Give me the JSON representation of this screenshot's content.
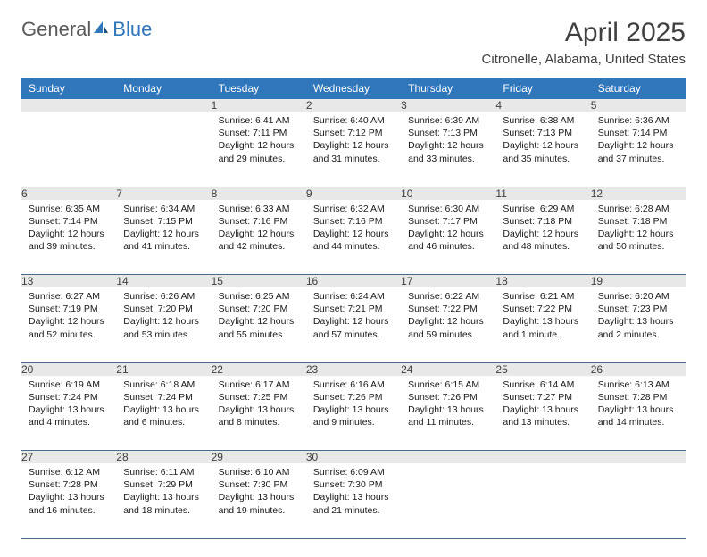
{
  "logo": {
    "general": "General",
    "blue": "Blue"
  },
  "title": "April 2025",
  "subtitle": "Citronelle, Alabama, United States",
  "headers": [
    "Sunday",
    "Monday",
    "Tuesday",
    "Wednesday",
    "Thursday",
    "Friday",
    "Saturday"
  ],
  "colors": {
    "header_bg": "#2f76bb",
    "header_fg": "#ffffff",
    "daynum_bg": "#e8e8e8",
    "border": "#4a6a8a",
    "text": "#1a1a1a",
    "title": "#404040"
  },
  "weeks": [
    [
      null,
      null,
      {
        "n": "1",
        "l1": "Sunrise: 6:41 AM",
        "l2": "Sunset: 7:11 PM",
        "l3": "Daylight: 12 hours",
        "l4": "and 29 minutes."
      },
      {
        "n": "2",
        "l1": "Sunrise: 6:40 AM",
        "l2": "Sunset: 7:12 PM",
        "l3": "Daylight: 12 hours",
        "l4": "and 31 minutes."
      },
      {
        "n": "3",
        "l1": "Sunrise: 6:39 AM",
        "l2": "Sunset: 7:13 PM",
        "l3": "Daylight: 12 hours",
        "l4": "and 33 minutes."
      },
      {
        "n": "4",
        "l1": "Sunrise: 6:38 AM",
        "l2": "Sunset: 7:13 PM",
        "l3": "Daylight: 12 hours",
        "l4": "and 35 minutes."
      },
      {
        "n": "5",
        "l1": "Sunrise: 6:36 AM",
        "l2": "Sunset: 7:14 PM",
        "l3": "Daylight: 12 hours",
        "l4": "and 37 minutes."
      }
    ],
    [
      {
        "n": "6",
        "l1": "Sunrise: 6:35 AM",
        "l2": "Sunset: 7:14 PM",
        "l3": "Daylight: 12 hours",
        "l4": "and 39 minutes."
      },
      {
        "n": "7",
        "l1": "Sunrise: 6:34 AM",
        "l2": "Sunset: 7:15 PM",
        "l3": "Daylight: 12 hours",
        "l4": "and 41 minutes."
      },
      {
        "n": "8",
        "l1": "Sunrise: 6:33 AM",
        "l2": "Sunset: 7:16 PM",
        "l3": "Daylight: 12 hours",
        "l4": "and 42 minutes."
      },
      {
        "n": "9",
        "l1": "Sunrise: 6:32 AM",
        "l2": "Sunset: 7:16 PM",
        "l3": "Daylight: 12 hours",
        "l4": "and 44 minutes."
      },
      {
        "n": "10",
        "l1": "Sunrise: 6:30 AM",
        "l2": "Sunset: 7:17 PM",
        "l3": "Daylight: 12 hours",
        "l4": "and 46 minutes."
      },
      {
        "n": "11",
        "l1": "Sunrise: 6:29 AM",
        "l2": "Sunset: 7:18 PM",
        "l3": "Daylight: 12 hours",
        "l4": "and 48 minutes."
      },
      {
        "n": "12",
        "l1": "Sunrise: 6:28 AM",
        "l2": "Sunset: 7:18 PM",
        "l3": "Daylight: 12 hours",
        "l4": "and 50 minutes."
      }
    ],
    [
      {
        "n": "13",
        "l1": "Sunrise: 6:27 AM",
        "l2": "Sunset: 7:19 PM",
        "l3": "Daylight: 12 hours",
        "l4": "and 52 minutes."
      },
      {
        "n": "14",
        "l1": "Sunrise: 6:26 AM",
        "l2": "Sunset: 7:20 PM",
        "l3": "Daylight: 12 hours",
        "l4": "and 53 minutes."
      },
      {
        "n": "15",
        "l1": "Sunrise: 6:25 AM",
        "l2": "Sunset: 7:20 PM",
        "l3": "Daylight: 12 hours",
        "l4": "and 55 minutes."
      },
      {
        "n": "16",
        "l1": "Sunrise: 6:24 AM",
        "l2": "Sunset: 7:21 PM",
        "l3": "Daylight: 12 hours",
        "l4": "and 57 minutes."
      },
      {
        "n": "17",
        "l1": "Sunrise: 6:22 AM",
        "l2": "Sunset: 7:22 PM",
        "l3": "Daylight: 12 hours",
        "l4": "and 59 minutes."
      },
      {
        "n": "18",
        "l1": "Sunrise: 6:21 AM",
        "l2": "Sunset: 7:22 PM",
        "l3": "Daylight: 13 hours",
        "l4": "and 1 minute."
      },
      {
        "n": "19",
        "l1": "Sunrise: 6:20 AM",
        "l2": "Sunset: 7:23 PM",
        "l3": "Daylight: 13 hours",
        "l4": "and 2 minutes."
      }
    ],
    [
      {
        "n": "20",
        "l1": "Sunrise: 6:19 AM",
        "l2": "Sunset: 7:24 PM",
        "l3": "Daylight: 13 hours",
        "l4": "and 4 minutes."
      },
      {
        "n": "21",
        "l1": "Sunrise: 6:18 AM",
        "l2": "Sunset: 7:24 PM",
        "l3": "Daylight: 13 hours",
        "l4": "and 6 minutes."
      },
      {
        "n": "22",
        "l1": "Sunrise: 6:17 AM",
        "l2": "Sunset: 7:25 PM",
        "l3": "Daylight: 13 hours",
        "l4": "and 8 minutes."
      },
      {
        "n": "23",
        "l1": "Sunrise: 6:16 AM",
        "l2": "Sunset: 7:26 PM",
        "l3": "Daylight: 13 hours",
        "l4": "and 9 minutes."
      },
      {
        "n": "24",
        "l1": "Sunrise: 6:15 AM",
        "l2": "Sunset: 7:26 PM",
        "l3": "Daylight: 13 hours",
        "l4": "and 11 minutes."
      },
      {
        "n": "25",
        "l1": "Sunrise: 6:14 AM",
        "l2": "Sunset: 7:27 PM",
        "l3": "Daylight: 13 hours",
        "l4": "and 13 minutes."
      },
      {
        "n": "26",
        "l1": "Sunrise: 6:13 AM",
        "l2": "Sunset: 7:28 PM",
        "l3": "Daylight: 13 hours",
        "l4": "and 14 minutes."
      }
    ],
    [
      {
        "n": "27",
        "l1": "Sunrise: 6:12 AM",
        "l2": "Sunset: 7:28 PM",
        "l3": "Daylight: 13 hours",
        "l4": "and 16 minutes."
      },
      {
        "n": "28",
        "l1": "Sunrise: 6:11 AM",
        "l2": "Sunset: 7:29 PM",
        "l3": "Daylight: 13 hours",
        "l4": "and 18 minutes."
      },
      {
        "n": "29",
        "l1": "Sunrise: 6:10 AM",
        "l2": "Sunset: 7:30 PM",
        "l3": "Daylight: 13 hours",
        "l4": "and 19 minutes."
      },
      {
        "n": "30",
        "l1": "Sunrise: 6:09 AM",
        "l2": "Sunset: 7:30 PM",
        "l3": "Daylight: 13 hours",
        "l4": "and 21 minutes."
      },
      null,
      null,
      null
    ]
  ]
}
